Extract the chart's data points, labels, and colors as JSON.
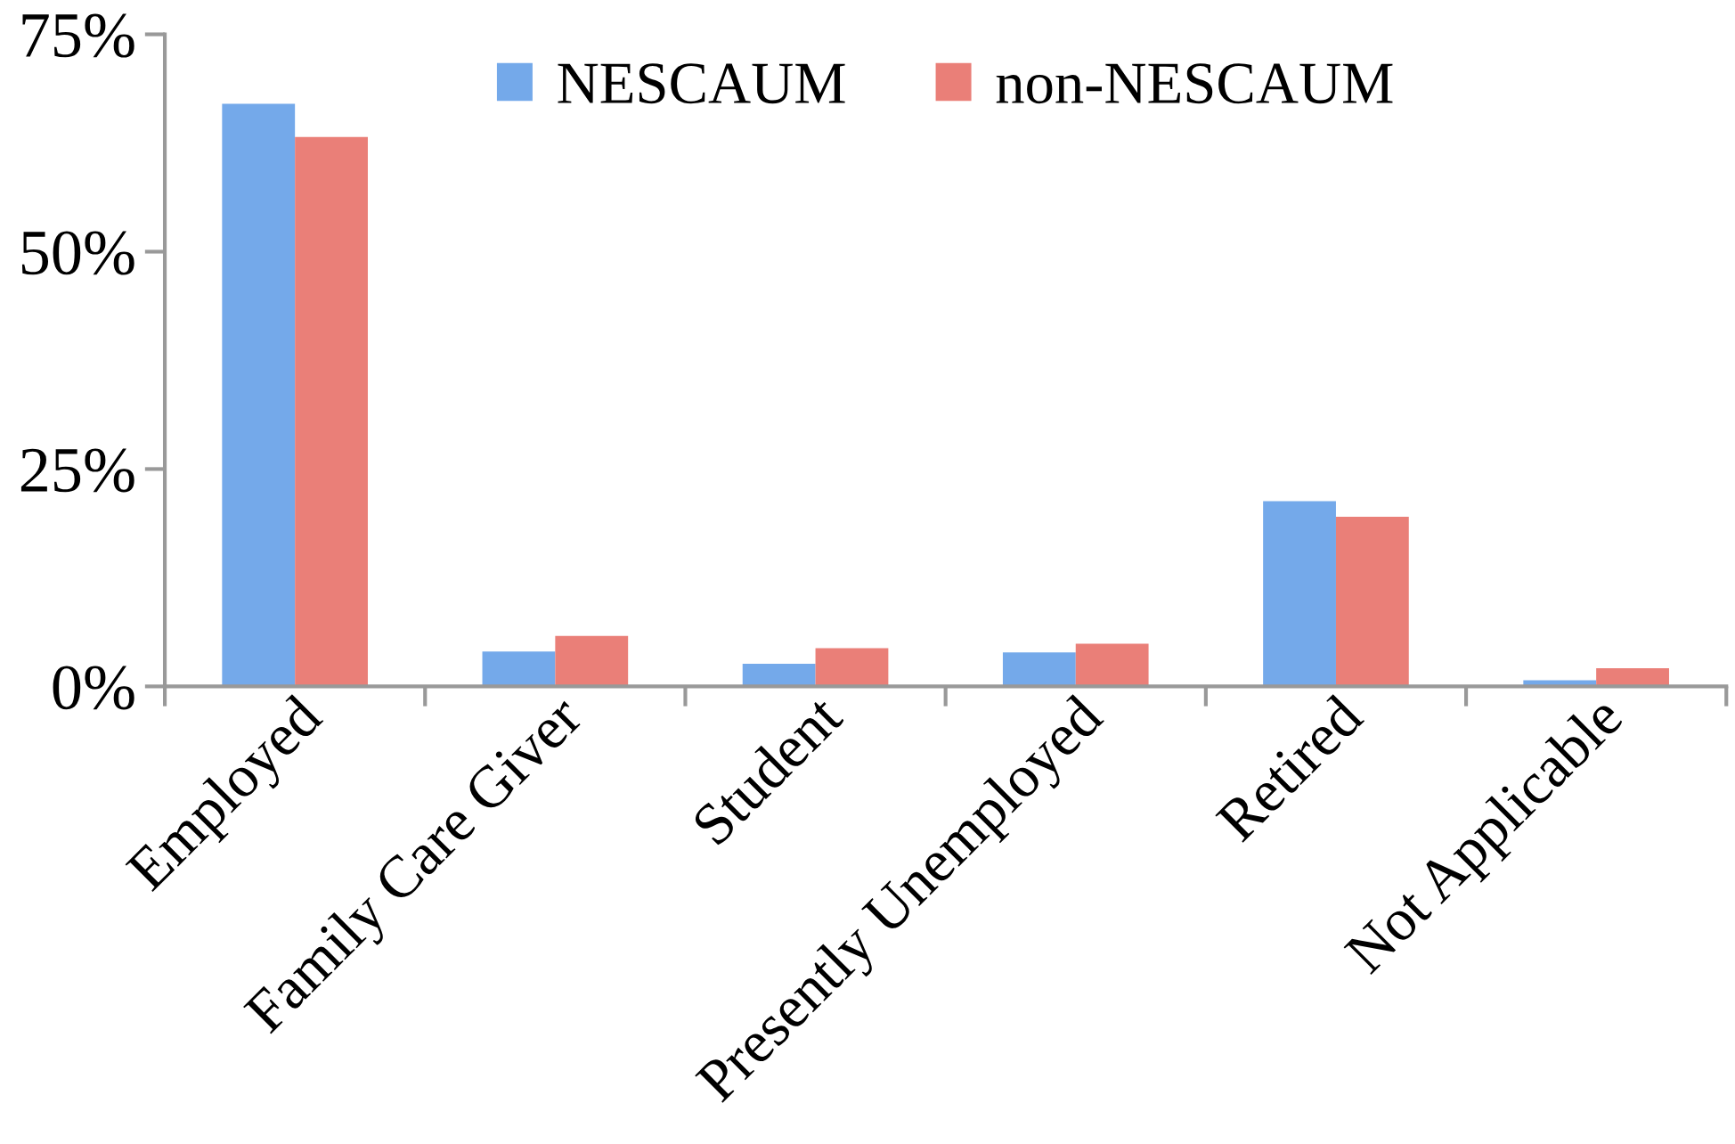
{
  "chart_data": {
    "type": "bar",
    "categories": [
      "Employed",
      "Family Care Giver",
      "Student",
      "Presently Unemployed",
      "Retired",
      "Not Applicable"
    ],
    "series": [
      {
        "name": "NESCAUM",
        "color": "#74a9ea",
        "values": [
          67,
          4.0,
          2.6,
          3.9,
          21.3,
          0.7
        ]
      },
      {
        "name": "non-NESCAUM",
        "color": "#ea7f78",
        "values": [
          63.2,
          5.8,
          4.4,
          4.9,
          19.5,
          2.1
        ]
      }
    ],
    "ylim": [
      0,
      75
    ],
    "yticks": [
      {
        "value": 0,
        "label": "0%"
      },
      {
        "value": 25,
        "label": "25%"
      },
      {
        "value": 50,
        "label": "50%"
      },
      {
        "value": 75,
        "label": "75%"
      }
    ],
    "grid": false,
    "legend": "top"
  }
}
